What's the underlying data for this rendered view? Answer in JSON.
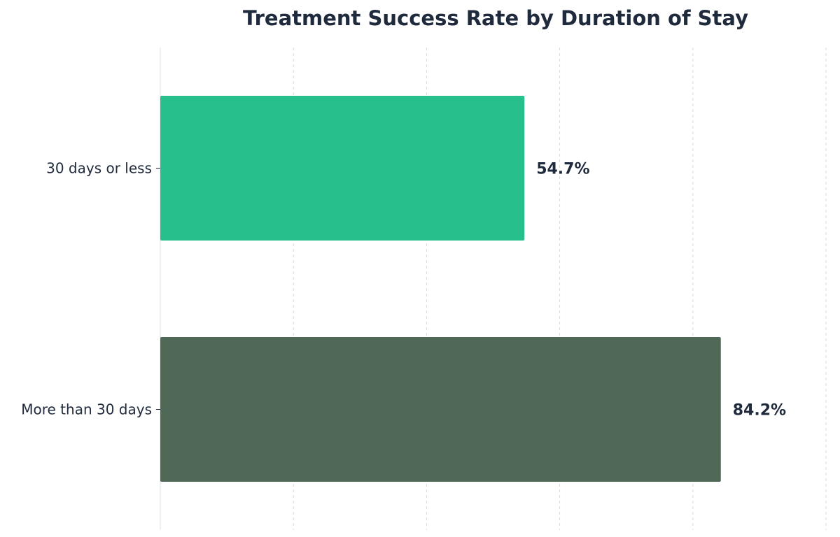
{
  "chart_data": {
    "type": "bar",
    "orientation": "horizontal",
    "title": "Treatment Success Rate by Duration of Stay",
    "xlabel": "",
    "ylabel": "",
    "categories": [
      "30 days or less",
      "More than 30 days"
    ],
    "values": [
      54.7,
      84.2
    ],
    "value_labels": [
      "54.7%",
      "84.2%"
    ],
    "colors": [
      "#27bf8c",
      "#506856"
    ],
    "xlim": [
      0,
      100
    ],
    "grid": true,
    "legend": "none"
  }
}
